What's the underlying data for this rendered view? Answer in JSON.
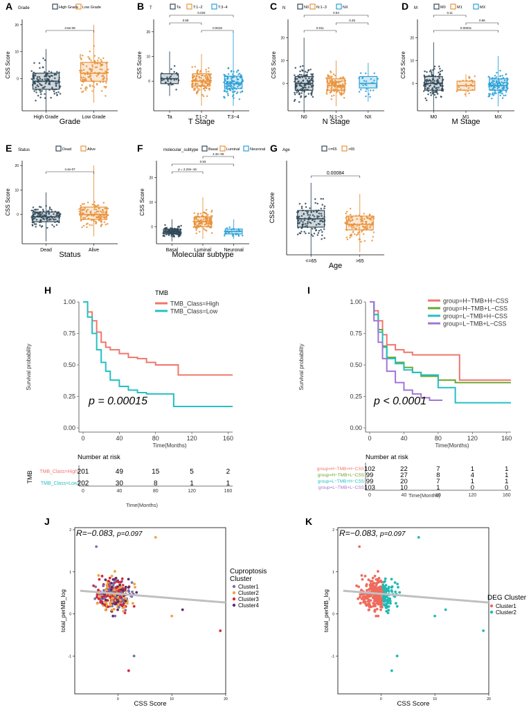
{
  "colors": {
    "box_dark": "#2f4858",
    "box_orange": "#e8923a",
    "box_blue": "#2a9fd6",
    "km_red": "#f0756c",
    "km_teal": "#23c0c4",
    "km_green": "#6ca62c",
    "km_purple": "#a374d4",
    "cl1": "#7a6fb0",
    "cl2": "#f1a23a",
    "cl3": "#d6263b",
    "cl4": "#5b2d6a",
    "deg1": "#ee6b5e",
    "deg2": "#22b9b4",
    "fit_line": "#c0c0c0"
  },
  "boxplots": [
    {
      "letter": "A",
      "legend_title": "Grade",
      "xlabel": "Grade",
      "ylabel": "CSS Score",
      "ylim": [
        -12,
        22
      ],
      "yticks": [
        0,
        10,
        20
      ],
      "categories": [
        "High Grade",
        "Low Grade"
      ],
      "color_keys": [
        "box_dark",
        "box_orange"
      ],
      "stats": [
        [
          -12,
          -4,
          -1,
          2,
          11
        ],
        [
          -9,
          -1,
          2,
          6,
          20
        ]
      ],
      "comparisons": [
        {
          "i": 0,
          "j": 1,
          "label": "3.5e-09",
          "level": 0
        }
      ]
    },
    {
      "letter": "B",
      "legend_title": "T",
      "xlabel": "T Stage",
      "ylabel": "CSS Score",
      "ylim": [
        -12,
        25
      ],
      "yticks": [
        0,
        10,
        20
      ],
      "categories": [
        "Ta",
        "T:1−2",
        "T:3−4"
      ],
      "color_keys": [
        "box_dark",
        "box_orange",
        "box_blue"
      ],
      "stats": [
        [
          -6,
          -1,
          1,
          3,
          12
        ],
        [
          -10,
          -2,
          0,
          3,
          11
        ],
        [
          -10,
          -3,
          -1,
          2,
          20
        ]
      ],
      "comparisons": [
        {
          "i": 0,
          "j": 1,
          "label": "0.59",
          "level": 1
        },
        {
          "i": 1,
          "j": 2,
          "label": "0.0015",
          "level": 0
        },
        {
          "i": 0,
          "j": 2,
          "label": "0.034",
          "level": 2
        }
      ]
    },
    {
      "letter": "C",
      "legend_title": "N",
      "xlabel": "N Stage",
      "ylabel": "CSS Score",
      "ylim": [
        -12,
        28
      ],
      "yticks": [
        0,
        10,
        20
      ],
      "categories": [
        "N0",
        "N:1−3",
        "NX"
      ],
      "color_keys": [
        "box_dark",
        "box_orange",
        "box_blue"
      ],
      "stats": [
        [
          -12,
          -3,
          0,
          3,
          20
        ],
        [
          -10,
          -3,
          -1,
          2,
          10
        ],
        [
          -8,
          -2,
          0,
          3,
          9
        ]
      ],
      "comparisons": [
        {
          "i": 0,
          "j": 1,
          "label": "0.011",
          "level": 0
        },
        {
          "i": 1,
          "j": 2,
          "label": "0.45",
          "level": 1
        },
        {
          "i": 0,
          "j": 2,
          "label": "0.54",
          "level": 2
        }
      ]
    },
    {
      "letter": "D",
      "legend_title": "M",
      "xlabel": "M Stage",
      "ylabel": "CSS Score",
      "ylim": [
        -12,
        28
      ],
      "yticks": [
        0,
        10,
        20
      ],
      "categories": [
        "M0",
        "M1",
        "MX"
      ],
      "color_keys": [
        "box_dark",
        "box_orange",
        "box_blue"
      ],
      "stats": [
        [
          -12,
          -3,
          0,
          3,
          18
        ],
        [
          -6,
          -3,
          -1,
          1,
          4
        ],
        [
          -10,
          -3,
          -1,
          2,
          12
        ]
      ],
      "comparisons": [
        {
          "i": 0,
          "j": 1,
          "label": "0.11",
          "level": 2
        },
        {
          "i": 1,
          "j": 2,
          "label": "0.96",
          "level": 1
        },
        {
          "i": 0,
          "j": 2,
          "label": "0.00031",
          "level": 0
        }
      ]
    },
    {
      "letter": "E",
      "legend_title": "Status",
      "xlabel": "Status",
      "ylabel": "CSS Score",
      "ylim": [
        -12,
        22
      ],
      "yticks": [
        0,
        10,
        20
      ],
      "categories": [
        "Dead",
        "Alive"
      ],
      "color_keys": [
        "box_dark",
        "box_orange"
      ],
      "stats": [
        [
          -11,
          -3,
          -1,
          1,
          9
        ],
        [
          -9,
          -2,
          0,
          3,
          20
        ]
      ],
      "comparisons": [
        {
          "i": 0,
          "j": 1,
          "label": "4.4e-07",
          "level": 0
        }
      ]
    },
    {
      "letter": "F",
      "legend_title": "molecular_subtype",
      "xlabel": "Molecular subtype",
      "ylabel": "CSS Score",
      "ylim": [
        -7,
        27
      ],
      "yticks": [
        0,
        10,
        20
      ],
      "categories": [
        "Basal",
        "Luminal",
        "Neuronal"
      ],
      "color_keys": [
        "box_dark",
        "box_orange",
        "box_blue"
      ],
      "stats": [
        [
          -6,
          -3,
          -2,
          -1,
          3
        ],
        [
          -5,
          0,
          2,
          4,
          12
        ],
        [
          -5,
          -3,
          -2,
          -1,
          3
        ]
      ],
      "comparisons": [
        {
          "i": 0,
          "j": 1,
          "label": "p = 2.22e−16",
          "level": 0
        },
        {
          "i": 1,
          "j": 2,
          "label": "4.3e−05",
          "level": 2
        },
        {
          "i": 0,
          "j": 2,
          "label": "0.93",
          "level": 1
        }
      ]
    },
    {
      "letter": "G",
      "legend_title": "Age",
      "xlabel": "Age",
      "ylabel": "CSS Score",
      "ylim": [
        -12,
        22
      ],
      "yticks": [],
      "categories": [
        "<=65",
        ">65"
      ],
      "color_keys": [
        "box_dark",
        "box_orange"
      ],
      "stats": [
        [
          -12,
          -2,
          1,
          4,
          14
        ],
        [
          -11,
          -3,
          -1,
          2,
          10
        ]
      ],
      "comparisons": [
        {
          "i": 0,
          "j": 1,
          "label": "0.00084",
          "level": 0
        }
      ]
    }
  ],
  "km": [
    {
      "letter": "H",
      "type": "line",
      "legend_title": "TMB",
      "ylabel": "Survival probability",
      "xlabel": "Time(Months)",
      "xlim": [
        0,
        165
      ],
      "xticks": [
        0,
        40,
        80,
        120,
        160
      ],
      "yticks": [
        0,
        0.25,
        0.5,
        0.75,
        1
      ],
      "ytick_labels": [
        "0.00",
        "0.25",
        "0.50",
        "0.75",
        "1.00"
      ],
      "pvalue": "p = 0.00015",
      "series": [
        {
          "name": "TMB_Class=High",
          "color_key": "km_red",
          "t": [
            0,
            5,
            10,
            15,
            20,
            25,
            30,
            40,
            50,
            60,
            70,
            80,
            90,
            105,
            130,
            165
          ],
          "s": [
            1,
            0.92,
            0.85,
            0.76,
            0.68,
            0.64,
            0.62,
            0.59,
            0.56,
            0.55,
            0.52,
            0.5,
            0.5,
            0.42,
            0.42,
            0.42
          ]
        },
        {
          "name": "TMB_Class=Low",
          "color_key": "km_teal",
          "t": [
            0,
            5,
            10,
            15,
            20,
            25,
            30,
            40,
            50,
            60,
            70,
            80,
            90,
            100,
            130,
            165
          ],
          "s": [
            1,
            0.88,
            0.75,
            0.62,
            0.52,
            0.45,
            0.38,
            0.33,
            0.3,
            0.28,
            0.27,
            0.27,
            0.27,
            0.17,
            0.17,
            0.17
          ]
        }
      ],
      "risk_title": "Number at risk",
      "risk_group_label": "TMB",
      "risk_rows": [
        {
          "label": "TMB_Class=High",
          "color_key": "km_red",
          "counts": [
            "201",
            "49",
            "15",
            "5",
            "2"
          ]
        },
        {
          "label": "TMB_Class=Low",
          "color_key": "km_teal",
          "counts": [
            "202",
            "30",
            "8",
            "1",
            "1"
          ]
        }
      ]
    },
    {
      "letter": "I",
      "type": "line",
      "legend_title": "",
      "ylabel": "Survival probability",
      "xlabel": "Time(Months)",
      "xlim": [
        0,
        165
      ],
      "xticks": [
        0,
        40,
        80,
        120,
        160
      ],
      "yticks": [
        0,
        0.25,
        0.5,
        0.75,
        1
      ],
      "ytick_labels": [
        "0.00",
        "0.25",
        "0.50",
        "0.75",
        "1.00"
      ],
      "pvalue": "p < 0.0001",
      "series": [
        {
          "name": "group=H−TMB+H−CSS",
          "color_key": "km_red",
          "t": [
            0,
            5,
            10,
            15,
            20,
            30,
            40,
            50,
            60,
            80,
            105,
            120,
            165
          ],
          "s": [
            1,
            0.93,
            0.85,
            0.74,
            0.66,
            0.62,
            0.6,
            0.58,
            0.58,
            0.58,
            0.38,
            0.38,
            0.38
          ]
        },
        {
          "name": "group=H−TMB+L−CSS",
          "color_key": "km_green",
          "t": [
            0,
            5,
            10,
            15,
            20,
            30,
            40,
            50,
            60,
            80,
            100,
            120,
            165
          ],
          "s": [
            1,
            0.9,
            0.78,
            0.65,
            0.56,
            0.52,
            0.48,
            0.44,
            0.41,
            0.38,
            0.36,
            0.36,
            0.36
          ]
        },
        {
          "name": "group=L−TMB+H−CSS",
          "color_key": "km_teal",
          "t": [
            0,
            5,
            10,
            15,
            20,
            30,
            40,
            50,
            60,
            80,
            100,
            120,
            165
          ],
          "s": [
            1,
            0.9,
            0.76,
            0.64,
            0.55,
            0.51,
            0.46,
            0.44,
            0.42,
            0.32,
            0.2,
            0.2,
            0.2
          ]
        },
        {
          "name": "group=L−TMB+L−CSS",
          "color_key": "km_purple",
          "t": [
            0,
            5,
            10,
            15,
            20,
            30,
            40,
            50,
            60,
            70,
            85
          ],
          "s": [
            1,
            0.85,
            0.68,
            0.55,
            0.45,
            0.36,
            0.3,
            0.27,
            0.24,
            0.22,
            0.22
          ]
        }
      ],
      "risk_title": "Number at risk",
      "risk_group_label": "",
      "risk_rows": [
        {
          "label": "group=H−TMB+H−CSS",
          "color_key": "km_red",
          "counts": [
            "102",
            "22",
            "7",
            "1",
            "1"
          ]
        },
        {
          "label": "group=H−TMB+L−CSS",
          "color_key": "km_green",
          "counts": [
            "99",
            "27",
            "8",
            "4",
            "1"
          ]
        },
        {
          "label": "group=L−TMB+H−CSS",
          "color_key": "km_teal",
          "counts": [
            "99",
            "20",
            "7",
            "1",
            "1"
          ]
        },
        {
          "label": "group=L−TMB+L−CSS",
          "color_key": "km_purple",
          "counts": [
            "103",
            "10",
            "1",
            "0",
            "0"
          ]
        }
      ]
    }
  ],
  "scatter": [
    {
      "letter": "J",
      "type": "scatter",
      "r": "R=−0.083,",
      "p": "p=0.097",
      "xlabel": "CSS Score",
      "ylabel": "total_perMB_log",
      "xlim": [
        -8,
        20
      ],
      "ylim": [
        -1.9,
        2.05
      ],
      "xticks": [
        0,
        10,
        20
      ],
      "yticks": [
        -1,
        0,
        1,
        2
      ],
      "fit": {
        "x0": -7,
        "y0": 0.55,
        "x1": 20,
        "y1": 0.27
      },
      "legend_title": [
        "Cuproptosis",
        "Cluster"
      ],
      "groups": [
        {
          "name": "Cluster1",
          "color_key": "cl1"
        },
        {
          "name": "Cluster2",
          "color_key": "cl2"
        },
        {
          "name": "Cluster3",
          "color_key": "cl3"
        },
        {
          "name": "Cluster4",
          "color_key": "cl4"
        }
      ]
    },
    {
      "letter": "K",
      "type": "scatter",
      "r": "R=−0.083,",
      "p": "p=0.097",
      "xlabel": "CSS Score",
      "ylabel": "total_perMB_log",
      "xlim": [
        -8,
        20
      ],
      "ylim": [
        -1.9,
        2.05
      ],
      "xticks": [
        0,
        10,
        20
      ],
      "yticks": [
        -1,
        0,
        1,
        2
      ],
      "fit": {
        "x0": -7,
        "y0": 0.55,
        "x1": 20,
        "y1": 0.27
      },
      "legend_title": [
        "DEG Cluster"
      ],
      "groups": [
        {
          "name": "Cluster1",
          "color_key": "deg1"
        },
        {
          "name": "Cluster2",
          "color_key": "deg2"
        }
      ]
    }
  ]
}
